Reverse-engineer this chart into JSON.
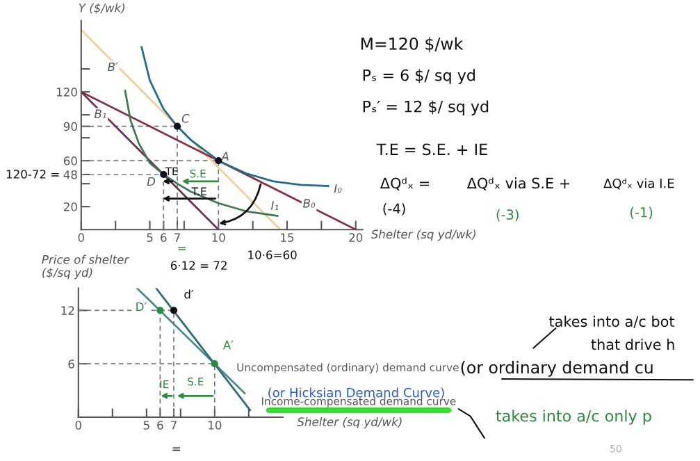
{
  "chart_data": [
    {
      "type": "line",
      "xlabel": "Shelter (sq yd/wk)",
      "ylabel": "Y ($/wk)",
      "xlim": [
        0,
        20.5
      ],
      "ylim": [
        0,
        182
      ],
      "xticks": [
        0,
        {
          "value": 2.5,
          "label": null
        },
        5,
        6,
        7,
        {
          "value": 7.5,
          "label": null
        },
        10,
        {
          "value": 12.5,
          "label": null
        },
        15,
        {
          "value": 17.5,
          "label": null
        },
        20
      ],
      "yticks": [
        20,
        {
          "value": 40,
          "label": null
        },
        48,
        60,
        {
          "value": 80,
          "label": null
        },
        90,
        {
          "value": 100,
          "label": null
        },
        120,
        {
          "value": 140,
          "label": null
        }
      ],
      "series": [
        {
          "line_style": "dashed",
          "color": "#777777",
          "x": [
            0,
            7,
            7
          ],
          "values": [
            90,
            90,
            0
          ]
        },
        {
          "line_style": "dashed",
          "color": "#777777",
          "x": [
            0,
            10,
            10
          ],
          "values": [
            60,
            60,
            0
          ]
        },
        {
          "line_style": "dashed",
          "color": "#777777",
          "x": [
            0,
            6,
            6
          ],
          "values": [
            48,
            48,
            0
          ]
        },
        {
          "line_style": "solid",
          "color": "#f2cf96",
          "x": [
            0,
            14.5
          ],
          "values": [
            174,
            0
          ]
        },
        {
          "line_style": "solid",
          "color": "#8c2a45",
          "x": [
            0,
            20
          ],
          "values": [
            120,
            0
          ]
        },
        {
          "line_style": "solid",
          "color": "#6e2f52",
          "x": [
            0,
            10
          ],
          "values": [
            120,
            0
          ]
        },
        {
          "line_style": "solid",
          "color": "#1f6e8c",
          "x": [
            4.4,
            5,
            6,
            7,
            8,
            10,
            12,
            14,
            16,
            18
          ],
          "values": [
            159,
            130,
            105,
            90,
            78,
            60,
            49,
            42,
            39,
            38
          ]
        },
        {
          "line_style": "solid",
          "color": "#3d7a52",
          "x": [
            3.2,
            3.6,
            4.2,
            5,
            6,
            7,
            8,
            10,
            12,
            14.3
          ],
          "values": [
            121,
            95,
            75,
            58,
            48,
            40,
            33,
            23,
            16,
            12
          ]
        },
        {
          "type": "scatter",
          "marker": "circle",
          "color": "#111122",
          "x": [
            7,
            10,
            6
          ],
          "values": [
            90,
            60,
            48
          ]
        }
      ],
      "annotations": [
        {
          "text": "B′",
          "x": 2.3,
          "y": 141
        },
        {
          "text": "B₁",
          "x": 1.4,
          "y": 100
        },
        "C",
        "A",
        "D",
        "I₀",
        "I₁",
        {
          "text": "B₀",
          "x": 16.6,
          "y": 22
        },
        {
          "text": "TE",
          "x": 5.8,
          "y": 42
        },
        {
          "text": "S.E",
          "x": 7.2,
          "y": 42
        },
        {
          "text": "T.E",
          "x": 5.8,
          "y": 27
        },
        "M=120 $/wk",
        "Pₛ = 6 $/ sq yd",
        "Pₛ′ = 12 $/ sq yd",
        "T.E = S.E. + IE",
        "ΔQᵈₓ =",
        "ΔQᵈₓ via S.E +",
        "ΔQᵈₓ via I.E",
        "(-4)",
        "(-3)",
        "(-1)",
        "120-72 =",
        "6·12 = 72",
        "10·6=60",
        "="
      ]
    },
    {
      "type": "line",
      "xlabel": "Shelter (sq yd/wk)",
      "ylabel": "Price of shelter\n($/sq yd)",
      "xlim": [
        0,
        15
      ],
      "ylim": [
        0,
        14.5
      ],
      "xticks": [
        0,
        {
          "value": 2.5,
          "label": null
        },
        5,
        6,
        7,
        {
          "value": 7.5,
          "label": null
        },
        10,
        {
          "value": 12.5,
          "label": null
        }
      ],
      "yticks": [
        6,
        12
      ],
      "series": [
        {
          "line_style": "dashed",
          "color": "#777777",
          "x": [
            0,
            6,
            6
          ],
          "values": [
            12,
            12,
            0
          ]
        },
        {
          "line_style": "dashed",
          "color": "#777777",
          "x": [
            6,
            7,
            7
          ],
          "values": [
            12,
            12,
            0
          ]
        },
        {
          "line_style": "dashed",
          "color": "#777777",
          "x": [
            0,
            10,
            10
          ],
          "values": [
            6,
            6,
            0
          ]
        },
        {
          "line_style": "solid",
          "color": "#4a8a8f",
          "x": [
            4.3,
            12.2
          ],
          "values": [
            14.5,
            2.7
          ]
        },
        {
          "line_style": "solid",
          "color": "#2f6c76",
          "x": [
            5.7,
            12.6
          ],
          "values": [
            14.5,
            0.8
          ]
        },
        {
          "type": "scatter",
          "marker": "circle",
          "color": "#2e8b3e",
          "x": [
            6,
            10
          ],
          "values": [
            12,
            6
          ]
        },
        {
          "type": "scatter",
          "marker": "circle",
          "color": "#111111",
          "x": [
            7
          ],
          "values": [
            12
          ]
        }
      ],
      "annotations": [
        "Uncompensated (ordinary) demand curve",
        "Income-compensated demand curve",
        {
          "text": "D′",
          "x": 4.6,
          "y": 12.3
        },
        "d′",
        "A′",
        {
          "text": "IE",
          "x": 5.9,
          "y": 2.4
        },
        {
          "text": "S.E",
          "x": 7.1,
          "y": 2.4
        },
        "(or Hicksian Demand Curve)",
        "(or ordinary demand cu",
        "takes into a/c bot",
        "that drive h",
        "takes into a/c only p",
        "=",
        "50"
      ]
    }
  ]
}
